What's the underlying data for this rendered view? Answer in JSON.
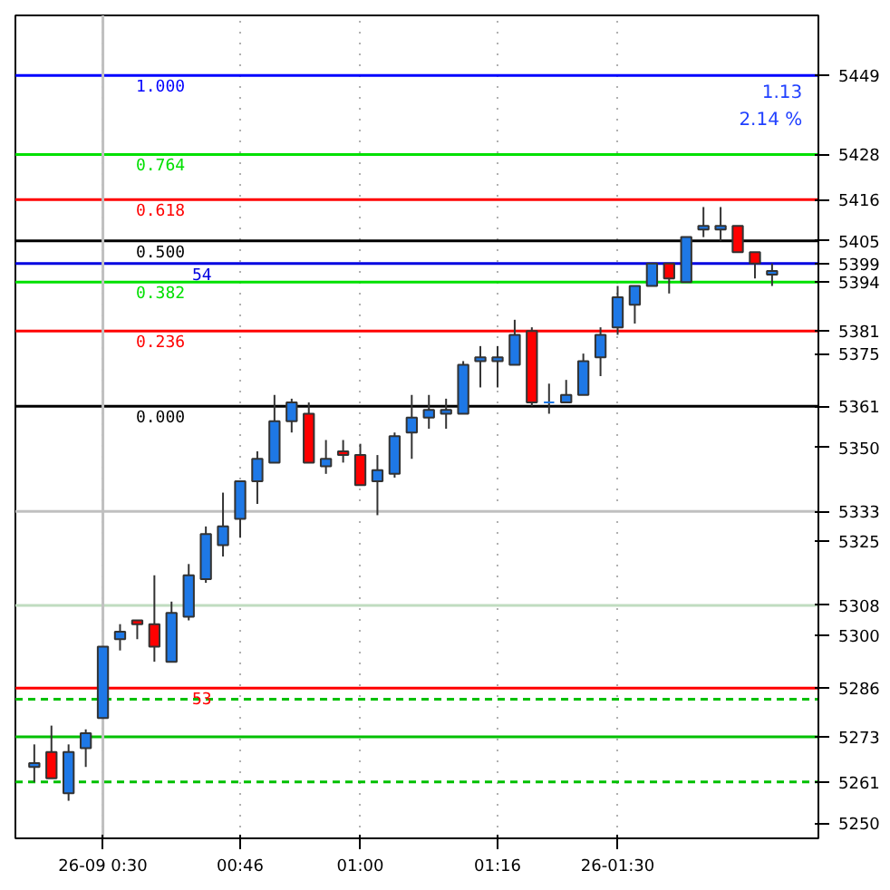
{
  "chart_data": {
    "type": "candlestick",
    "x": [
      0.3667,
      0.4,
      0.4333,
      0.4667,
      0.5,
      0.5333,
      0.5667,
      0.6,
      0.6333,
      0.6667,
      0.7,
      0.7333,
      0.7667,
      0.8,
      0.8333,
      0.8667,
      0.9,
      0.9333,
      0.9667,
      1.0,
      1.0333,
      1.0667,
      1.1,
      1.1333,
      1.1667,
      1.2,
      1.2333,
      1.2667,
      1.3,
      1.3333,
      1.3667,
      1.4,
      1.4333,
      1.4667,
      1.5,
      1.5333,
      1.5667,
      1.6,
      1.6333,
      1.6667,
      1.7,
      1.7333,
      1.7667,
      1.8
    ],
    "ohlc": [
      [
        5265,
        5271,
        5261,
        5266
      ],
      [
        5269,
        5276,
        5262,
        5262
      ],
      [
        5258,
        5271,
        5256,
        5269
      ],
      [
        5270,
        5275,
        5265,
        5274
      ],
      [
        5278,
        5297,
        5278,
        5297
      ],
      [
        5299,
        5303,
        5296,
        5301
      ],
      [
        5304,
        5304,
        5299,
        5303
      ],
      [
        5303,
        5316,
        5293,
        5297
      ],
      [
        5293,
        5309,
        5293,
        5306
      ],
      [
        5305,
        5319,
        5304,
        5316
      ],
      [
        5315,
        5329,
        5314,
        5327
      ],
      [
        5324,
        5338,
        5321,
        5329
      ],
      [
        5331,
        5341,
        5326,
        5341
      ],
      [
        5341,
        5349,
        5335,
        5347
      ],
      [
        5346,
        5364,
        5346,
        5357
      ],
      [
        5357,
        5363,
        5354,
        5362
      ],
      [
        5359,
        5362,
        5346,
        5346
      ],
      [
        5345,
        5352,
        5343,
        5347
      ],
      [
        5349,
        5352,
        5346,
        5348
      ],
      [
        5348,
        5351,
        5340,
        5340
      ],
      [
        5341,
        5348,
        5332,
        5344
      ],
      [
        5343,
        5354,
        5342,
        5353
      ],
      [
        5354,
        5364,
        5347,
        5358
      ],
      [
        5358,
        5364,
        5355,
        5360
      ],
      [
        5359,
        5363,
        5355,
        5360
      ],
      [
        5359,
        5373,
        5359,
        5372
      ],
      [
        5373,
        5377,
        5366,
        5374
      ],
      [
        5373,
        5377,
        5366,
        5374
      ],
      [
        5372,
        5384,
        5372,
        5380
      ],
      [
        5381,
        5382,
        5361,
        5362
      ],
      [
        5362,
        5367,
        5359,
        5362
      ],
      [
        5362,
        5368,
        5362,
        5364
      ],
      [
        5364,
        5375,
        5364,
        5373
      ],
      [
        5374,
        5382,
        5369,
        5380
      ],
      [
        5382,
        5393,
        5380,
        5390
      ],
      [
        5388,
        5393,
        5383,
        5393
      ],
      [
        5393,
        5399,
        5393,
        5399
      ],
      [
        5399,
        5399,
        5391,
        5395
      ],
      [
        5394,
        5406,
        5394,
        5406
      ],
      [
        5408,
        5414,
        5406,
        5409
      ],
      [
        5408,
        5414,
        5405,
        5409
      ],
      [
        5409,
        5409,
        5402,
        5402
      ],
      [
        5402,
        5402,
        5395,
        5399
      ],
      [
        5396,
        5399,
        5393,
        5397
      ]
    ],
    "colors": [
      "#1e78e6",
      "#ff0000",
      "#1e78e6",
      "#1e78e6",
      "#1e78e6",
      "#1e78e6",
      "#ff0000",
      "#ff0000",
      "#1e78e6",
      "#1e78e6",
      "#1e78e6",
      "#1e78e6",
      "#1e78e6",
      "#1e78e6",
      "#1e78e6",
      "#1e78e6",
      "#ff0000",
      "#1e78e6",
      "#ff0000",
      "#ff0000",
      "#1e78e6",
      "#1e78e6",
      "#1e78e6",
      "#1e78e6",
      "#1e78e6",
      "#1e78e6",
      "#1e78e6",
      "#1e78e6",
      "#1e78e6",
      "#ff0000",
      "#1e78e6",
      "#1e78e6",
      "#1e78e6",
      "#1e78e6",
      "#1e78e6",
      "#1e78e6",
      "#1e78e6",
      "#ff0000",
      "#1e78e6",
      "#1e78e6",
      "#1e78e6",
      "#ff0000",
      "#ff0000",
      "#1e78e6"
    ],
    "xlim": [
      0.33,
      1.89
    ],
    "ylim": [
      5246,
      5465
    ],
    "xticks": [
      {
        "value": 0.5,
        "label": "26-09 0:30"
      },
      {
        "value": 0.7667,
        "label": "00:46"
      },
      {
        "value": 1.0,
        "label": "01:00"
      },
      {
        "value": 1.2667,
        "label": "01:16"
      },
      {
        "value": 1.5,
        "label": "26-01:30"
      }
    ],
    "yticks": [
      5250,
      5261,
      5273,
      5286,
      5300,
      5308,
      5325,
      5333,
      5350,
      5361,
      5375,
      5381,
      5394,
      5399,
      5405,
      5416,
      5428,
      5449
    ],
    "grid": "x",
    "ref_lines": [
      {
        "axis": "y",
        "value": 5449,
        "color": "#0000ff"
      },
      {
        "axis": "y",
        "value": 5428,
        "color": "#00e000"
      },
      {
        "axis": "y",
        "value": 5416,
        "color": "#ff0000"
      },
      {
        "axis": "y",
        "value": 5405,
        "color": "#000000"
      },
      {
        "axis": "y",
        "value": 5399,
        "color": "#0000e0"
      },
      {
        "axis": "y",
        "value": 5394,
        "color": "#00e000"
      },
      {
        "axis": "y",
        "value": 5381,
        "color": "#ff0000"
      },
      {
        "axis": "y",
        "value": 5361,
        "color": "#000000"
      },
      {
        "axis": "y",
        "value": 5333,
        "color": "#c0c0c0"
      },
      {
        "axis": "y",
        "value": 5308,
        "color": "#c0dcc0"
      },
      {
        "axis": "y",
        "value": 5286,
        "color": "#ff0000"
      },
      {
        "axis": "y",
        "value": 5283,
        "color": "#00c000",
        "line_style": "dashed"
      },
      {
        "axis": "y",
        "value": 5273,
        "color": "#00c000"
      },
      {
        "axis": "y",
        "value": 5261,
        "color": "#00c000",
        "line_style": "dashed"
      },
      {
        "axis": "x",
        "value": 0.5,
        "color": "#c0c0c0"
      }
    ],
    "annotations": [
      "1.000",
      "0.764",
      "0.618",
      "0.500",
      "54",
      "0.382",
      "0.236",
      "0.000",
      "53",
      "1.13",
      "2.14 %"
    ]
  }
}
